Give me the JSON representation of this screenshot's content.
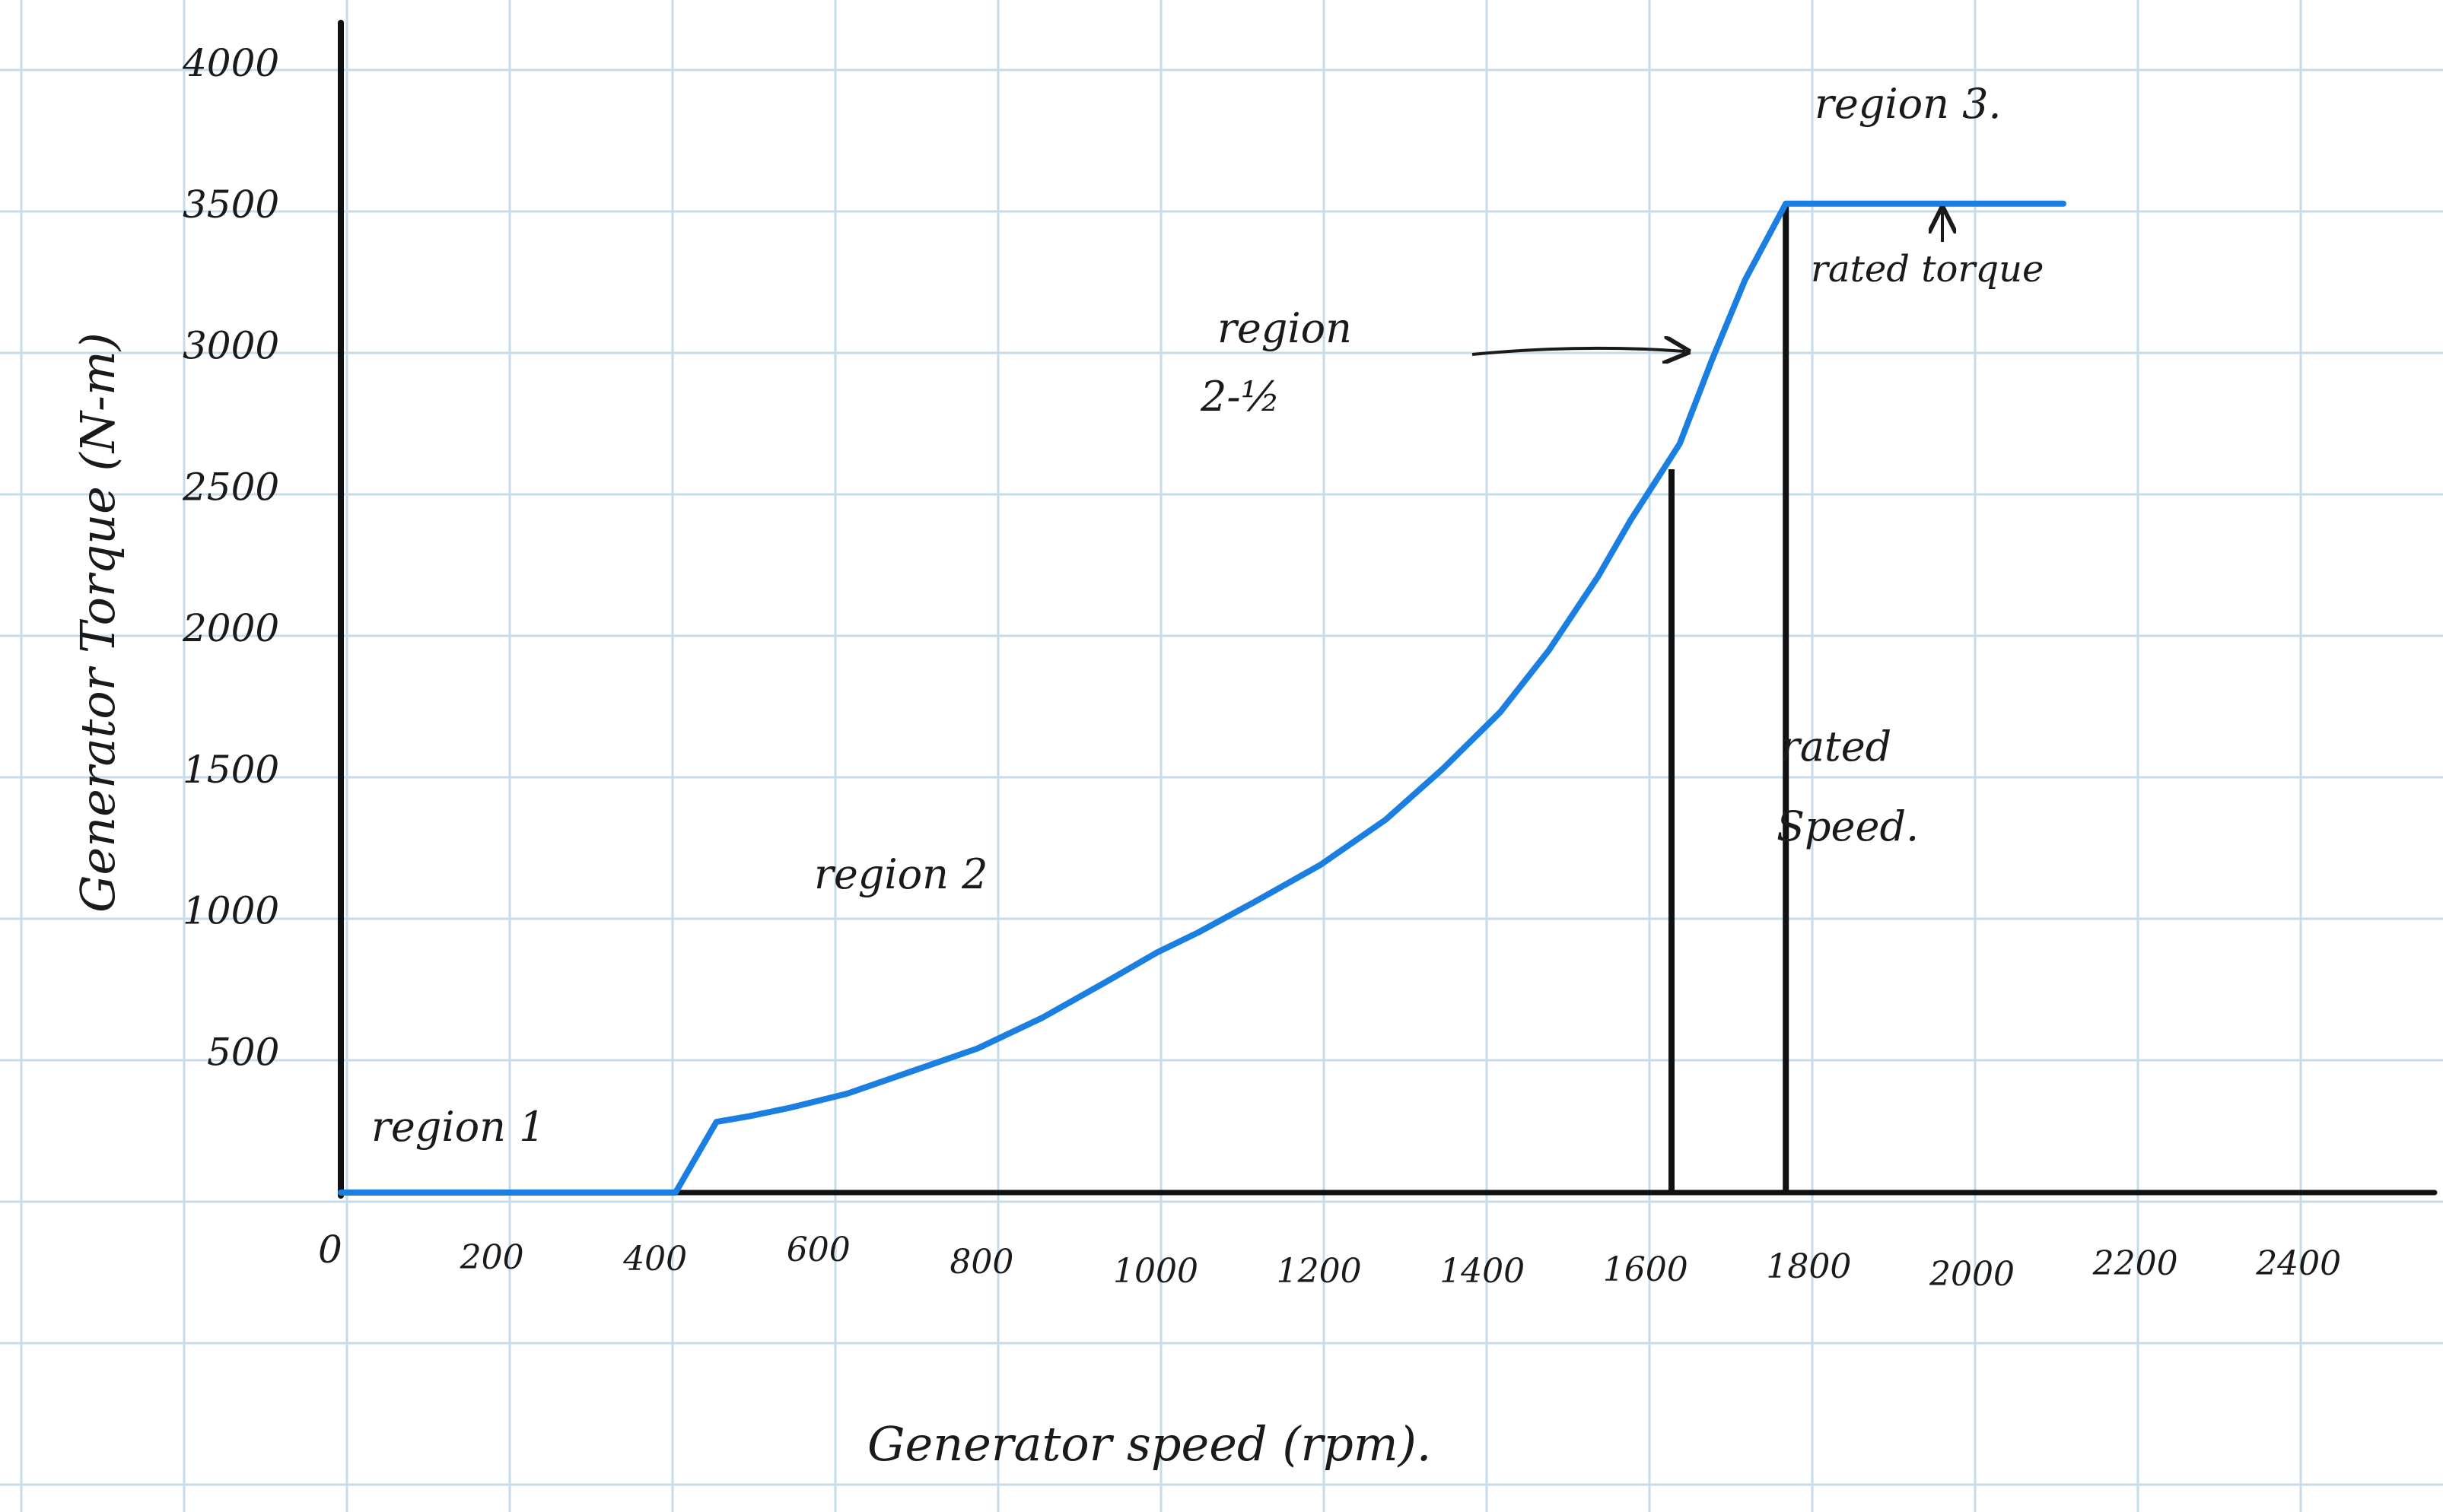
{
  "chart_data": {
    "type": "line",
    "xlabel": "Generator speed (rpm).",
    "ylabel": "Generator Torque (N-m)",
    "xlim": [
      0,
      2600
    ],
    "ylim": [
      0,
      4000
    ],
    "x_ticks": [
      "0",
      "200",
      "400",
      "600",
      "800",
      "1000",
      "1200",
      "1400",
      "1600",
      "1800",
      "2000",
      "2200",
      "2400"
    ],
    "y_ticks": [
      "4000",
      "3500",
      "3000",
      "2500",
      "2000",
      "1500",
      "1000",
      "500"
    ],
    "grid": true,
    "series": [
      {
        "color": "#1a7fe0",
        "x": [
          0,
          410,
          460,
          500,
          550,
          620,
          700,
          780,
          860,
          940,
          1000,
          1050,
          1120,
          1200,
          1280,
          1350,
          1420,
          1480,
          1540,
          1580,
          1620,
          1640,
          1680,
          1720,
          1770,
          1820,
          1900,
          2000,
          2110
        ],
        "y": [
          0,
          0,
          250,
          270,
          300,
          350,
          430,
          510,
          620,
          750,
          850,
          920,
          1030,
          1160,
          1320,
          1500,
          1700,
          1920,
          2180,
          2380,
          2560,
          2650,
          2950,
          3230,
          3500,
          3500,
          3500,
          3500,
          3500
        ]
      }
    ],
    "vertical_lines": [
      {
        "x": 1630,
        "y_top": 2560,
        "color": "#111111"
      },
      {
        "x": 1770,
        "y_top": 3500,
        "color": "#111111"
      }
    ],
    "annotations": {
      "region1": "region 1",
      "region2": "region 2",
      "region2_5_line1": "region",
      "region2_5_line2": "2-½",
      "region3": "region 3.",
      "rated_torque": "rated torque",
      "rated_speed_line1": "rated",
      "rated_speed_line2": "Speed."
    }
  }
}
